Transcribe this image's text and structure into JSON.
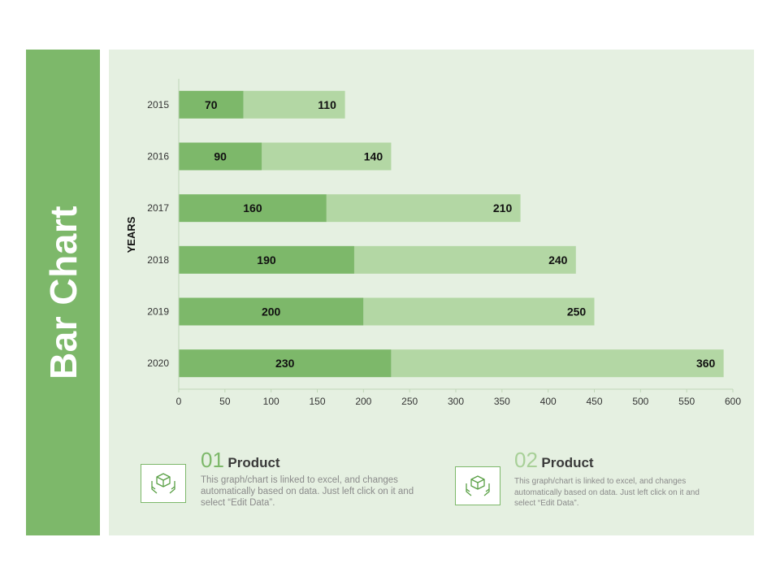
{
  "page": {
    "title": "Bar Chart"
  },
  "chart_data": {
    "type": "bar",
    "orientation": "horizontal",
    "stacked": true,
    "categories": [
      "2015",
      "2016",
      "2017",
      "2018",
      "2019",
      "2020"
    ],
    "series": [
      {
        "values": [
          70,
          90,
          160,
          190,
          200,
          230
        ],
        "color": "#7db86a"
      },
      {
        "values": [
          110,
          140,
          210,
          240,
          250,
          360
        ],
        "color": "#b3d7a4"
      }
    ],
    "ylabel": "YEARS",
    "xlabel": "",
    "xlim": [
      0,
      600
    ],
    "xticks": [
      0,
      50,
      100,
      150,
      200,
      250,
      300,
      350,
      400,
      450,
      500,
      550,
      600
    ],
    "grid": false,
    "legend": "none"
  },
  "features": [
    {
      "number": "01",
      "label": "Product",
      "description": "This graph/chart is linked to excel, and changes automatically based on data. Just left click on it and select “Edit Data”.",
      "icon": "box-in-hands-icon"
    },
    {
      "number": "02",
      "label": "Product",
      "description": "This graph/chart is linked to excel, and changes automatically based on data. Just left click on it and select “Edit Data”.",
      "icon": "box-in-hands-icon"
    }
  ],
  "colors": {
    "accent": "#7db86a",
    "accent_light": "#b3d7a4",
    "panel_bg": "#e5f0e1"
  }
}
